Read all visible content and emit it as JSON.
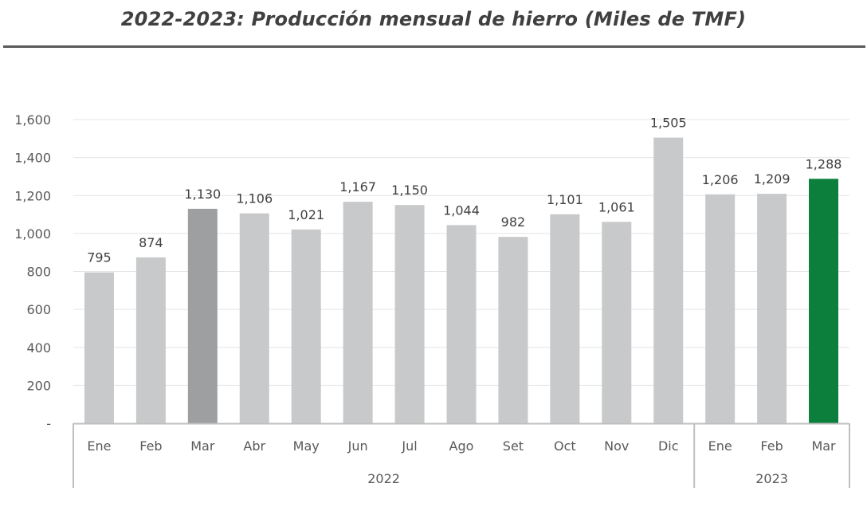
{
  "chart_data": {
    "type": "bar",
    "title": "2022-2023: Producción mensual de hierro (Miles de TMF)",
    "categories": [
      "Ene",
      "Feb",
      "Mar",
      "Abr",
      "May",
      "Jun",
      "Jul",
      "Ago",
      "Set",
      "Oct",
      "Nov",
      "Dic",
      "Ene",
      "Feb",
      "Mar"
    ],
    "values": [
      795,
      874,
      1130,
      1106,
      1021,
      1167,
      1150,
      1044,
      982,
      1101,
      1061,
      1505,
      1206,
      1209,
      1288
    ],
    "value_labels": [
      "795",
      "874",
      "1,130",
      "1,106",
      "1,021",
      "1,167",
      "1,150",
      "1,044",
      "982",
      "1,101",
      "1,061",
      "1,505",
      "1,206",
      "1,209",
      "1,288"
    ],
    "groups": [
      {
        "label": "2022",
        "count": 12
      },
      {
        "label": "2023",
        "count": 3
      }
    ],
    "bar_colors": [
      "#c8c9ca",
      "#c8c9ca",
      "#9d9fa1",
      "#c8c9ca",
      "#c8c9ca",
      "#c8c9ca",
      "#c8c9ca",
      "#c8c9ca",
      "#c8c9ca",
      "#c8c9ca",
      "#c8c9ca",
      "#c8c9ca",
      "#c8c9ca",
      "#c8c9ca",
      "#0b7f3b"
    ],
    "ylim": [
      0,
      1600
    ],
    "yticks": [
      0,
      200,
      400,
      600,
      800,
      1000,
      1200,
      1400,
      1600
    ],
    "ytick_labels": [
      "-",
      "200",
      "400",
      "600",
      "800",
      "1,000",
      "1,200",
      "1,400",
      "1,600"
    ],
    "grid": true,
    "legend": "none"
  }
}
